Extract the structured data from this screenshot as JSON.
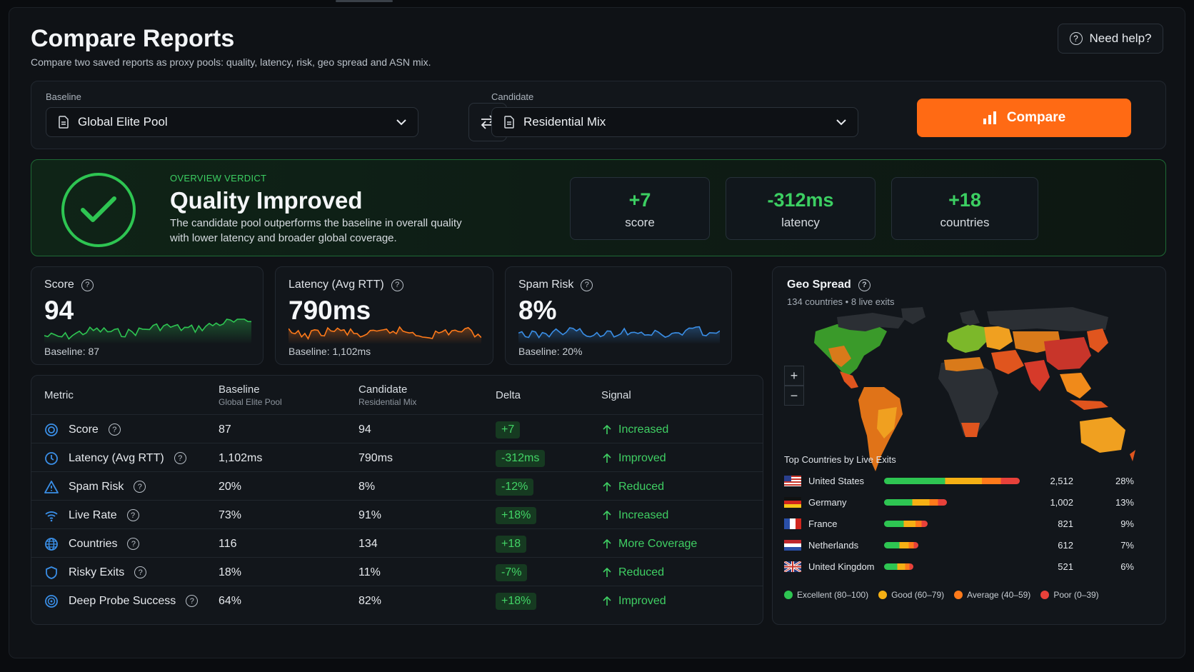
{
  "page": {
    "title": "Compare Reports",
    "subtitle": "Compare two saved reports as proxy pools: quality, latency, risk, geo spread and ASN mix.",
    "help_label": "Need help?"
  },
  "selectors": {
    "baseline_label": "Baseline",
    "baseline_value": "Global Elite Pool",
    "candidate_label": "Candidate",
    "candidate_value": "Residential Mix",
    "compare_label": "Compare"
  },
  "verdict": {
    "label": "OVERVIEW VERDICT",
    "title": "Quality Improved",
    "description": "The candidate pool outperforms the baseline in overall quality with lower latency and broader global coverage.",
    "stats": [
      {
        "value": "+7",
        "label": "score"
      },
      {
        "value": "-312ms",
        "label": "latency"
      },
      {
        "value": "+18",
        "label": "countries"
      }
    ]
  },
  "kpis": [
    {
      "title": "Score",
      "value": "94",
      "baseline": "Baseline: 87",
      "color": "#2ec552"
    },
    {
      "title": "Latency (Avg RTT)",
      "value": "790ms",
      "baseline": "Baseline: 1,102ms",
      "color": "#ff7a1a"
    },
    {
      "title": "Spam Risk",
      "value": "8%",
      "baseline": "Baseline: 20%",
      "color": "#3a8ee6"
    }
  ],
  "table": {
    "headers": {
      "metric": "Metric",
      "baseline": "Baseline",
      "baseline_sub": "Global Elite Pool",
      "candidate": "Candidate",
      "candidate_sub": "Residential Mix",
      "delta": "Delta",
      "signal": "Signal"
    },
    "rows": [
      {
        "metric": "Score",
        "icon": "target-icon",
        "baseline": "87",
        "candidate": "94",
        "delta": "+7",
        "signal": "Increased"
      },
      {
        "metric": "Latency (Avg RTT)",
        "icon": "clock-icon",
        "baseline": "1,102ms",
        "candidate": "790ms",
        "delta": "-312ms",
        "signal": "Improved"
      },
      {
        "metric": "Spam Risk",
        "icon": "warning-icon",
        "baseline": "20%",
        "candidate": "8%",
        "delta": "-12%",
        "signal": "Reduced"
      },
      {
        "metric": "Live Rate",
        "icon": "wifi-icon",
        "baseline": "73%",
        "candidate": "91%",
        "delta": "+18%",
        "signal": "Increased"
      },
      {
        "metric": "Countries",
        "icon": "globe-icon",
        "baseline": "116",
        "candidate": "134",
        "delta": "+18",
        "signal": "More Coverage"
      },
      {
        "metric": "Risky Exits",
        "icon": "shield-icon",
        "baseline": "18%",
        "candidate": "11%",
        "delta": "-7%",
        "signal": "Reduced"
      },
      {
        "metric": "Deep Probe Success",
        "icon": "radar-icon",
        "baseline": "64%",
        "candidate": "82%",
        "delta": "+18%",
        "signal": "Improved"
      }
    ]
  },
  "geo": {
    "title": "Geo Spread",
    "subtitle": "134 countries • 8 live exits",
    "top_title": "Top Countries by Live Exits",
    "countries": [
      {
        "name": "United States",
        "count": "2,512",
        "pct": "28%",
        "share": 0.28
      },
      {
        "name": "Germany",
        "count": "1,002",
        "pct": "13%",
        "share": 0.13
      },
      {
        "name": "France",
        "count": "821",
        "pct": "9%",
        "share": 0.09
      },
      {
        "name": "Netherlands",
        "count": "612",
        "pct": "7%",
        "share": 0.07
      },
      {
        "name": "United Kingdom",
        "count": "521",
        "pct": "6%",
        "share": 0.06
      }
    ],
    "legend": [
      {
        "label": "Excellent (80–100)",
        "color": "#2ec552"
      },
      {
        "label": "Good (60–79)",
        "color": "#f5b014"
      },
      {
        "label": "Average (40–59)",
        "color": "#ff7a1a"
      },
      {
        "label": "Poor (0–39)",
        "color": "#e8413a"
      }
    ]
  }
}
